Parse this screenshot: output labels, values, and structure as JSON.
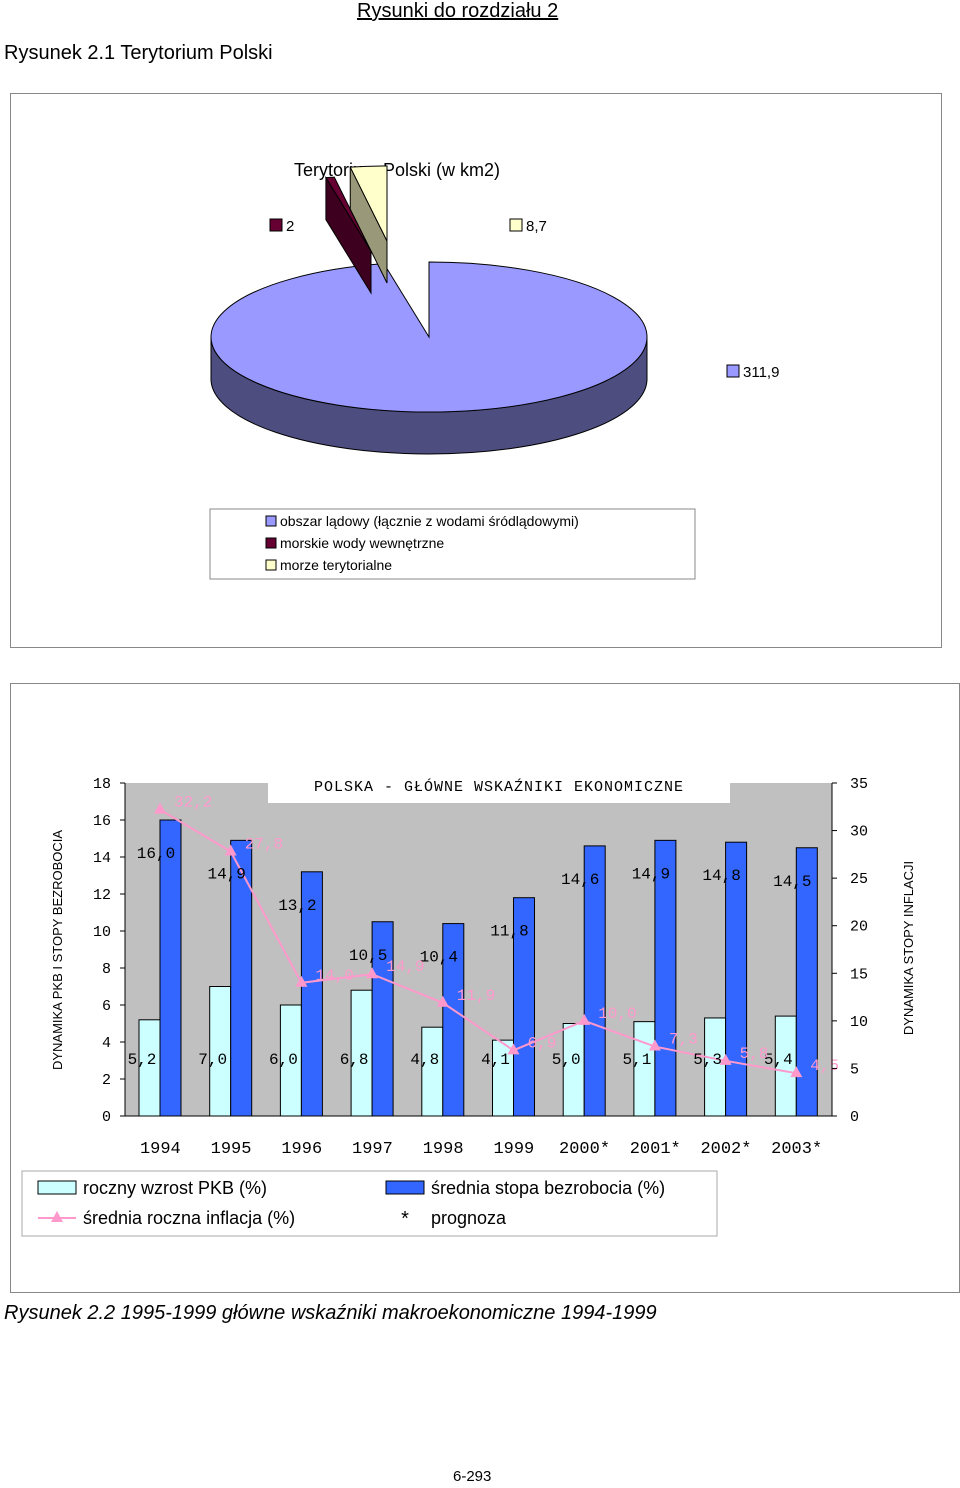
{
  "header": {
    "section_title": "Rysunki do rozdziału 2"
  },
  "figure1": {
    "caption": "Rysunek 2.1  Terytorium Polski",
    "chart_data": {
      "type": "pie",
      "title": "Terytorium Polski (w km2)",
      "slices": [
        {
          "name": "obszar lądowy (łącznie z wodami śródlądowymi)",
          "value": 311.9,
          "label": "311,9",
          "color": "#9999ff"
        },
        {
          "name": "morskie wody wewnętrzne",
          "value": 2,
          "label": "2",
          "color": "#660033"
        },
        {
          "name": "morze terytorialne",
          "value": 8.7,
          "label": "8,7",
          "color": "#ffffcc"
        }
      ],
      "legend": [
        "obszar lądowy (łącznie z wodami śródlądowymi)",
        "morskie wody wewnętrzne",
        "morze terytorialne"
      ],
      "legend_position": "bottom"
    }
  },
  "figure2": {
    "caption": "Rysunek 2.2  1995-1999 główne wskaźniki makroekonomiczne 1994-1999",
    "chart_data": {
      "type": "bar",
      "title": "POLSKA - GŁÓWNE WSKAŹNIKI EKONOMICZNE",
      "categories": [
        "1994",
        "1995",
        "1996",
        "1997",
        "1998",
        "1999",
        "2000*",
        "2001*",
        "2002*",
        "2003*"
      ],
      "ylabel_left": "DYNAMIKA PKB I STOPY BEZROBOCIA",
      "ylabel_right": "DYNAMIKA STOPY INFLACJI",
      "ylim_left": [
        0,
        18
      ],
      "ylim_right": [
        0,
        35
      ],
      "yticks_left": [
        "0",
        "2",
        "4",
        "6",
        "8",
        "10",
        "12",
        "14",
        "16",
        "18"
      ],
      "yticks_right": [
        "0",
        "5",
        "10",
        "15",
        "20",
        "25",
        "30",
        "35"
      ],
      "series": [
        {
          "name": "roczny wzrost PKB (%)",
          "axis": "left",
          "color": "#ccffff",
          "values": [
            5.2,
            7.0,
            6.0,
            6.8,
            4.8,
            4.1,
            5.0,
            5.1,
            5.3,
            5.4
          ],
          "labels": [
            "5,2",
            "7,0",
            "6,0",
            "6,8",
            "4,8",
            "4,1",
            "5,0",
            "5,1",
            "5,3",
            "5,4"
          ]
        },
        {
          "name": "średnia stopa bezrobocia (%)",
          "axis": "left",
          "color": "#3366ff",
          "values": [
            16.0,
            14.9,
            13.2,
            10.5,
            10.4,
            11.8,
            14.6,
            14.9,
            14.8,
            14.5
          ],
          "labels": [
            "16,0",
            "14,9",
            "13,2",
            "10,5",
            "10,4",
            "11,8",
            "14,6",
            "14,9",
            "14,8",
            "14,5"
          ]
        },
        {
          "name": "średnia roczna inflacja (%)",
          "axis": "right",
          "type": "line",
          "color": "#ff99cc",
          "values": [
            32.2,
            27.8,
            14.0,
            14.9,
            11.9,
            6.9,
            10.0,
            7.3,
            5.8,
            4.5
          ],
          "labels": [
            "32,2",
            "27,8",
            "14,0",
            "14,9",
            "11,9",
            "6,9",
            "10,0",
            "7,3",
            "5,8",
            "4,5"
          ]
        }
      ],
      "legend": [
        {
          "label": "roczny wzrost PKB (%)",
          "symbol": "box-light"
        },
        {
          "label": "średnia stopa bezrobocia (%)",
          "symbol": "box-blue"
        },
        {
          "label": "średnia roczna inflacja (%)",
          "symbol": "line-triangle"
        },
        {
          "label": "prognoza",
          "symbol": "asterisk"
        }
      ],
      "legend_position": "bottom",
      "plot_background": "#c0c0c0"
    }
  },
  "footer": {
    "page_number": "6-293"
  }
}
